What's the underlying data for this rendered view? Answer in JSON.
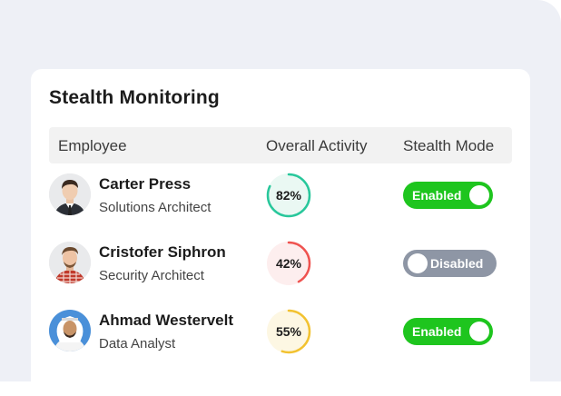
{
  "card": {
    "title": "Stealth Monitoring",
    "columns": {
      "employee": "Employee",
      "activity": "Overall Activity",
      "stealth": "Stealth Mode"
    }
  },
  "rows": [
    {
      "name": "Carter Press",
      "role": "Solutions Architect",
      "activity": 82,
      "activity_label": "82%",
      "ring_color": "#28c79b",
      "ring_bg": "#eaf8f3",
      "stealth": "Enabled",
      "stealth_on": true
    },
    {
      "name": "Cristofer Siphron",
      "role": "Security Architect",
      "activity": 42,
      "activity_label": "42%",
      "ring_color": "#ef5350",
      "ring_bg": "#fdeeee",
      "stealth": "Disabled",
      "stealth_on": false
    },
    {
      "name": "Ahmad Westervelt",
      "role": "Data Analyst",
      "activity": 55,
      "activity_label": "55%",
      "ring_color": "#f2c230",
      "ring_bg": "#fdf7e3",
      "stealth": "Enabled",
      "stealth_on": true
    }
  ]
}
